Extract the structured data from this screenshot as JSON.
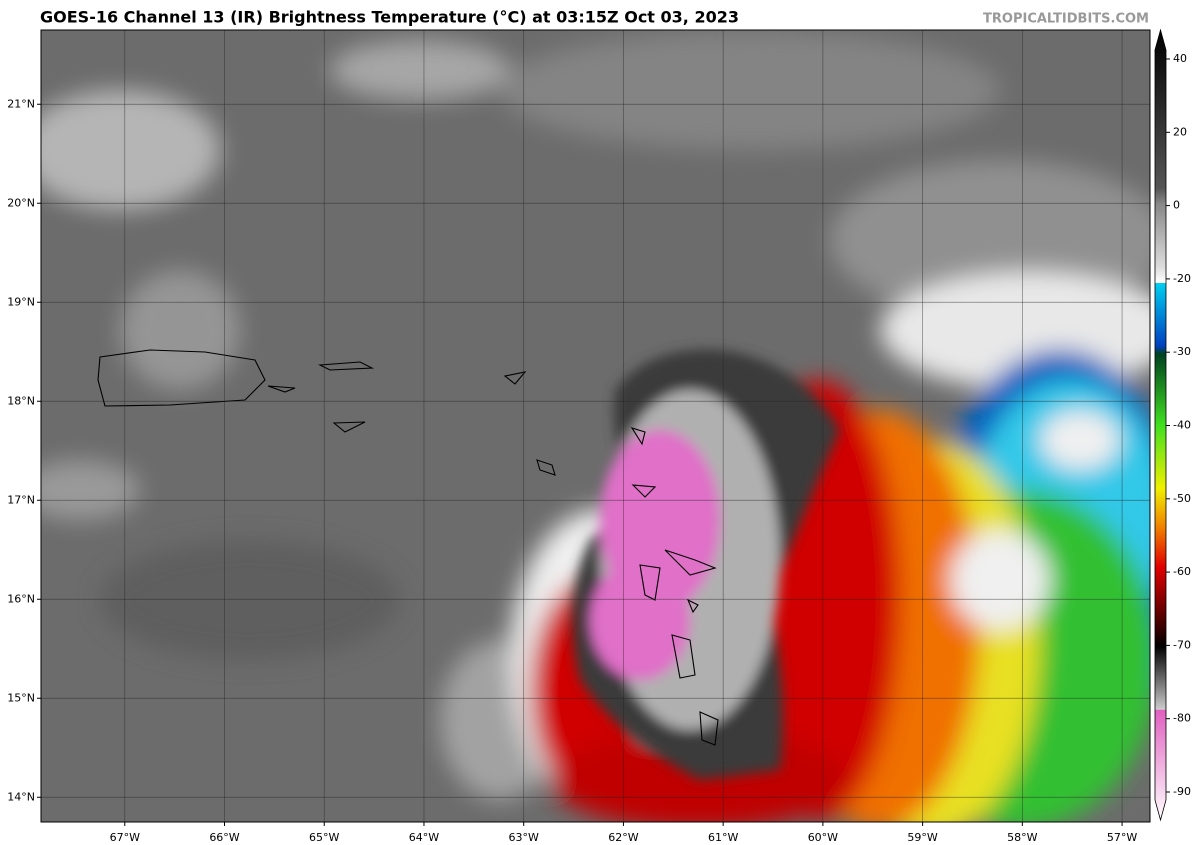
{
  "title": "GOES-16 Channel 13 (IR) Brightness Temperature (°C) at 03:15Z Oct 03, 2023",
  "credit": "TROPICALTIDBITS.COM",
  "map": {
    "xlim": [
      -67.84,
      -56.72
    ],
    "ylim": [
      13.75,
      21.75
    ],
    "lon_ticks": [
      {
        "value": -67,
        "label": "67°W"
      },
      {
        "value": -66,
        "label": "66°W"
      },
      {
        "value": -65,
        "label": "65°W"
      },
      {
        "value": -64,
        "label": "64°W"
      },
      {
        "value": -63,
        "label": "63°W"
      },
      {
        "value": -62,
        "label": "62°W"
      },
      {
        "value": -61,
        "label": "61°W"
      },
      {
        "value": -60,
        "label": "60°W"
      },
      {
        "value": -59,
        "label": "59°W"
      },
      {
        "value": -58,
        "label": "58°W"
      },
      {
        "value": -57,
        "label": "57°W"
      }
    ],
    "lat_ticks": [
      {
        "value": 14,
        "label": "14°N"
      },
      {
        "value": 15,
        "label": "15°N"
      },
      {
        "value": 16,
        "label": "16°N"
      },
      {
        "value": 17,
        "label": "17°N"
      },
      {
        "value": 18,
        "label": "18°N"
      },
      {
        "value": 19,
        "label": "19°N"
      },
      {
        "value": 20,
        "label": "20°N"
      },
      {
        "value": 21,
        "label": "21°N"
      }
    ]
  },
  "colorbar": {
    "ticks": [
      40,
      20,
      0,
      -20,
      -30,
      -40,
      -50,
      -60,
      -70,
      -80,
      -90
    ]
  }
}
